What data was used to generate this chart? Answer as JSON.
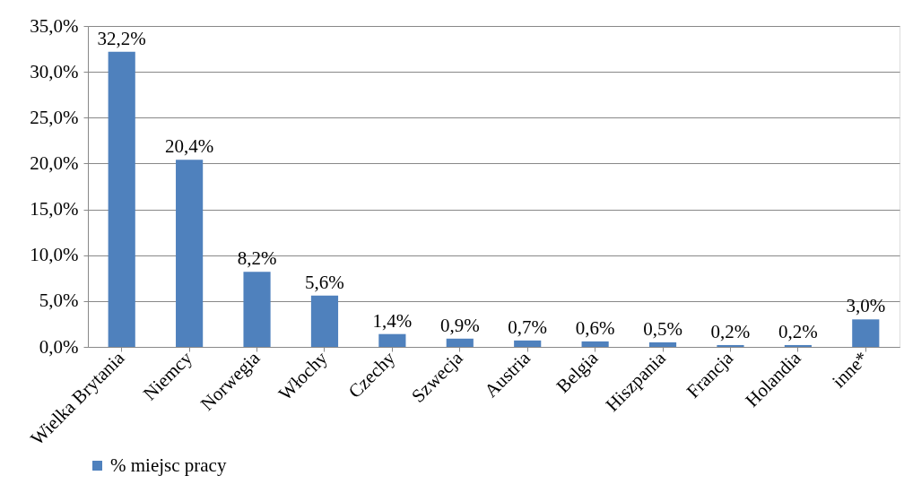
{
  "chart_data": {
    "type": "bar",
    "categories": [
      "Wielka Brytania",
      "Niemcy",
      "Norwegia",
      "Włochy",
      "Czechy",
      "Szwecja",
      "Austria",
      "Belgia",
      "Hiszpania",
      "Francja",
      "Holandia",
      "inne*"
    ],
    "series": [
      {
        "name": "% miejsc pracy",
        "color": "#4f81bd",
        "values": [
          32.2,
          20.4,
          8.2,
          5.6,
          1.4,
          0.9,
          0.7,
          0.6,
          0.5,
          0.2,
          0.2,
          3.0
        ],
        "value_labels": [
          "32,2%",
          "20,4%",
          "8,2%",
          "5,6%",
          "1,4%",
          "0,9%",
          "0,7%",
          "0,6%",
          "0,5%",
          "0,2%",
          "0,2%",
          "3,0%"
        ]
      }
    ],
    "ylim": [
      0,
      35
    ],
    "yticks": [
      {
        "value": 0,
        "label": "0,0%"
      },
      {
        "value": 5,
        "label": "5,0%"
      },
      {
        "value": 10,
        "label": "10,0%"
      },
      {
        "value": 15,
        "label": "15,0%"
      },
      {
        "value": 20,
        "label": "20,0%"
      },
      {
        "value": 25,
        "label": "25,0%"
      },
      {
        "value": 30,
        "label": "30,0%"
      },
      {
        "value": 35,
        "label": "35,0%"
      }
    ],
    "grid": "y",
    "legend": "bottom"
  }
}
